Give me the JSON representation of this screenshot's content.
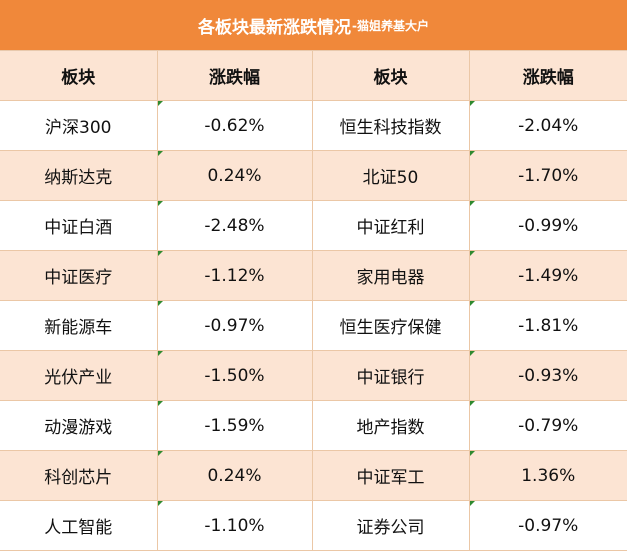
{
  "title": {
    "main": "各板块最新涨跌情况",
    "sub": "-猫姐养基大户"
  },
  "headers": [
    "板块",
    "涨跌幅",
    "板块",
    "涨跌幅"
  ],
  "rows": [
    {
      "left_name": "沪深300",
      "left_change": "-0.62%",
      "right_name": "恒生科技指数",
      "right_change": "-2.04%"
    },
    {
      "left_name": "纳斯达克",
      "left_change": "0.24%",
      "right_name": "北证50",
      "right_change": "-1.70%"
    },
    {
      "left_name": "中证白酒",
      "left_change": "-2.48%",
      "right_name": "中证红利",
      "right_change": "-0.99%"
    },
    {
      "left_name": "中证医疗",
      "left_change": "-1.12%",
      "right_name": "家用电器",
      "right_change": "-1.49%"
    },
    {
      "left_name": "新能源车",
      "left_change": "-0.97%",
      "right_name": "恒生医疗保健",
      "right_change": "-1.81%"
    },
    {
      "left_name": "光伏产业",
      "left_change": "-1.50%",
      "right_name": "中证银行",
      "right_change": "-0.93%"
    },
    {
      "left_name": "动漫游戏",
      "left_change": "-1.59%",
      "right_name": "地产指数",
      "right_change": "-0.79%"
    },
    {
      "left_name": "科创芯片",
      "left_change": "0.24%",
      "right_name": "中证军工",
      "right_change": "1.36%"
    },
    {
      "left_name": "人工智能",
      "left_change": "-1.10%",
      "right_name": "证券公司",
      "right_change": "-0.97%"
    }
  ],
  "colors": {
    "header": "#f0883a",
    "band": "#fce4d3",
    "gain": "#a60d0d",
    "loss": "#4e8b2f",
    "cell_marker": "#2f8a2f"
  }
}
